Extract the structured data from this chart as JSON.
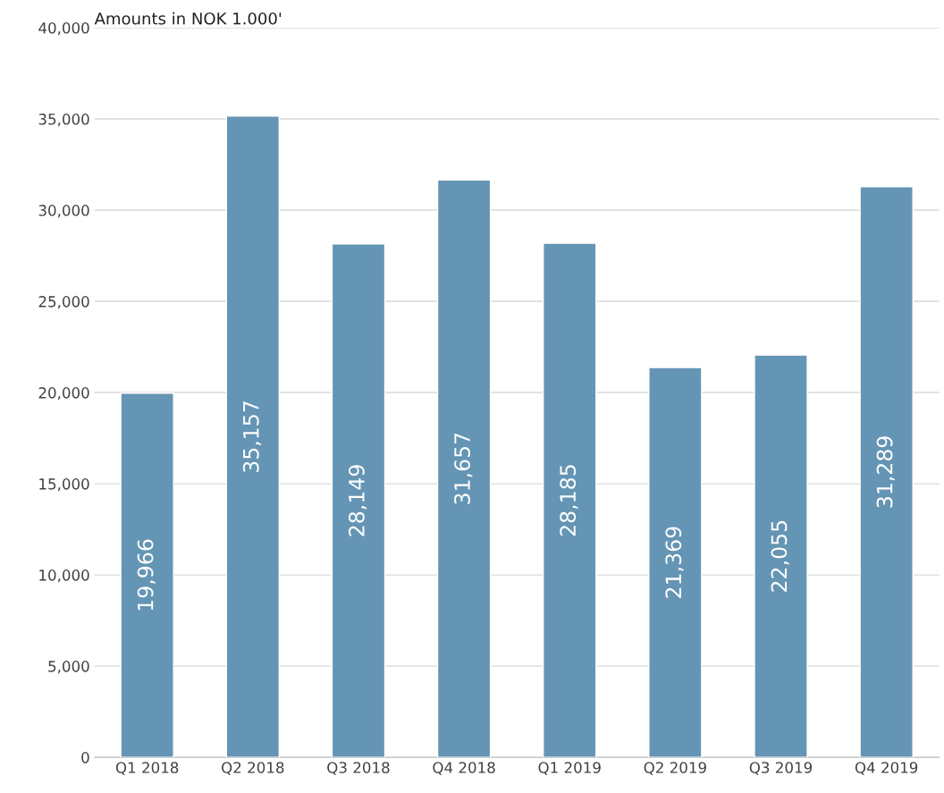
{
  "chart_data": {
    "type": "bar",
    "ylabel": "Amounts in NOK 1.000'",
    "categories": [
      "Q1 2018",
      "Q2 2018",
      "Q3 2018",
      "Q4 2018",
      "Q1 2019",
      "Q2 2019",
      "Q3 2019",
      "Q4 2019"
    ],
    "values": [
      19966,
      35157,
      28149,
      31657,
      28185,
      21369,
      22055,
      31289
    ],
    "color": "#6595b4",
    "ylim": [
      0,
      40000
    ],
    "yticks": [
      {
        "value": 0,
        "label": "0"
      },
      {
        "value": 5000,
        "label": "5,000"
      },
      {
        "value": 10000,
        "label": "10,000"
      },
      {
        "value": 15000,
        "label": "15,000"
      },
      {
        "value": 20000,
        "label": "20,000"
      },
      {
        "value": 25000,
        "label": "25,000"
      },
      {
        "value": 30000,
        "label": "30,000"
      },
      {
        "value": 35000,
        "label": "35,000"
      },
      {
        "value": 40000,
        "label": "40,000"
      }
    ],
    "value_labels": [
      "19,966",
      "35,157",
      "28,149",
      "31,657",
      "28,185",
      "21,369",
      "22,055",
      "31,289"
    ],
    "grid": "y"
  }
}
